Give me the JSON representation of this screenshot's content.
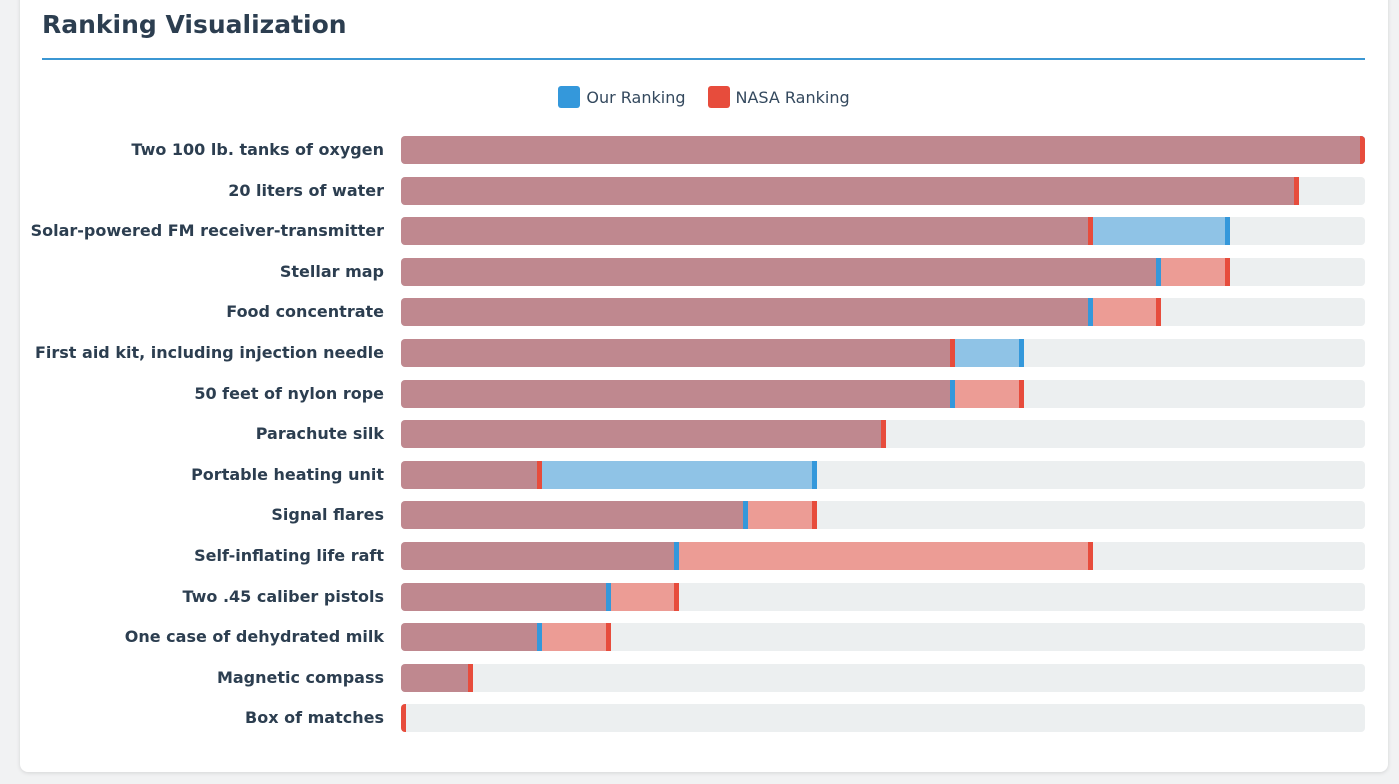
{
  "header": {
    "title": "Ranking Visualization"
  },
  "legend": {
    "ours": "Our Ranking",
    "nasa": "NASA Ranking"
  },
  "colors": {
    "ours": "#3498db",
    "nasa": "#e74c3c",
    "common": "#bf888f",
    "track": "#eceff0"
  },
  "chart_data": {
    "type": "bar",
    "orientation": "horizontal",
    "title": "Ranking Visualization",
    "legend_position": "top-center",
    "categories": [
      "Two 100 lb. tanks of oxygen",
      "20 liters of water",
      "Solar-powered FM receiver-transmitter",
      "Stellar map",
      "Food concentrate",
      "First aid kit, including injection needle",
      "50 feet of nylon rope",
      "Parachute silk",
      "Portable heating unit",
      "Signal flares",
      "Self-inflating life raft",
      "Two .45 caliber pistols",
      "One case of dehydrated milk",
      "Magnetic compass",
      "Box of matches"
    ],
    "series": [
      {
        "name": "Our Ranking",
        "values": [
          1,
          2,
          3,
          4,
          5,
          6,
          7,
          8,
          9,
          10,
          11,
          12,
          13,
          14,
          15
        ]
      },
      {
        "name": "NASA Ranking",
        "values": [
          1,
          2,
          5,
          3,
          4,
          7,
          6,
          8,
          13,
          9,
          5,
          11,
          12,
          14,
          15
        ]
      }
    ],
    "max_rank": 15
  }
}
